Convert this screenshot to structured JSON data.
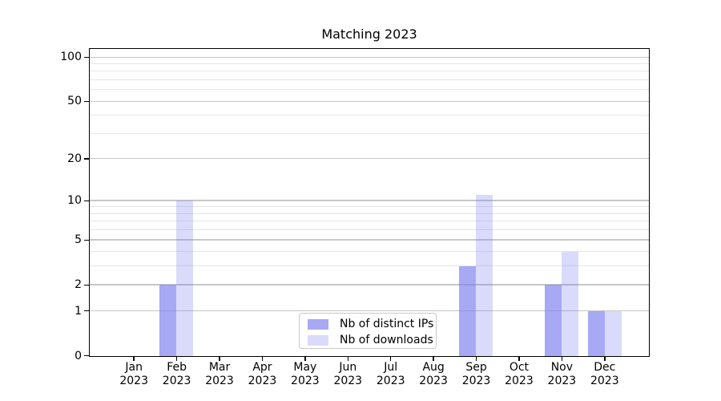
{
  "chart_data": {
    "type": "bar",
    "title": "Matching 2023",
    "categories": [
      "Jan",
      "Feb",
      "Mar",
      "Apr",
      "May",
      "Jun",
      "Jul",
      "Aug",
      "Sep",
      "Oct",
      "Nov",
      "Dec"
    ],
    "category_sub_label": "2023",
    "series": [
      {
        "name": "Nb of distinct IPs",
        "fill": "rgba(122,125,238,0.66)",
        "solid_color": "#a9abf3",
        "values": [
          0,
          2,
          0,
          0,
          0,
          0,
          0,
          0,
          3,
          0,
          2,
          1
        ]
      },
      {
        "name": "Nb of downloads",
        "fill": "rgba(122,125,238,0.28)",
        "solid_color": "#dadcfa",
        "values": [
          0,
          10,
          0,
          0,
          0,
          0,
          0,
          0,
          11,
          0,
          4,
          1
        ]
      }
    ],
    "xlabel": "",
    "ylabel": "",
    "yscale": "log1p",
    "ylim": [
      0,
      113.5
    ],
    "yticks_major": [
      0,
      1,
      2,
      5,
      10,
      20,
      50,
      100
    ],
    "yticks_minor": [
      3,
      4,
      6,
      7,
      8,
      9,
      30,
      40,
      60,
      70,
      80,
      90
    ],
    "grid": {
      "on": true,
      "orientation": "horizontal",
      "major_color": "#c7c7c7",
      "minor_color": "#e6e6e6"
    },
    "legend": {
      "position": "lower-center",
      "entries": [
        "Nb of distinct IPs",
        "Nb of downloads"
      ]
    },
    "spine_color": "#000000",
    "text_color": "#000000",
    "background_color": "#ffffff"
  }
}
